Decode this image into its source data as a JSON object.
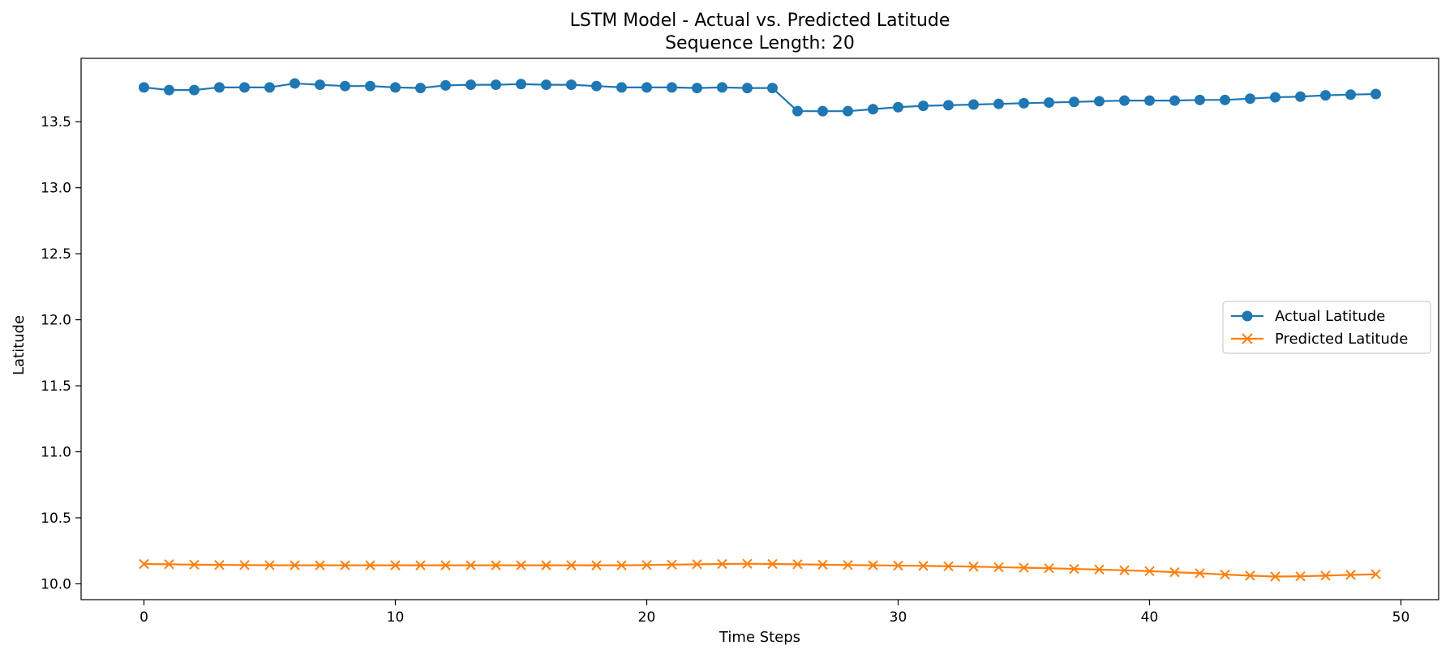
{
  "chart_data": {
    "type": "line",
    "title": "LSTM Model - Actual vs. Predicted Latitude",
    "subtitle": "Sequence Length: 20",
    "xlabel": "Time Steps",
    "ylabel": "Latitude",
    "xlim": [
      -2.5,
      51.5
    ],
    "ylim": [
      9.88,
      13.98
    ],
    "xticks": [
      0,
      10,
      20,
      30,
      40,
      50
    ],
    "yticks": [
      10.0,
      10.5,
      11.0,
      11.5,
      12.0,
      12.5,
      13.0,
      13.5
    ],
    "ytick_labels": [
      "10.0",
      "10.5",
      "11.0",
      "11.5",
      "12.0",
      "12.5",
      "13.0",
      "13.5"
    ],
    "grid": false,
    "legend_position": "center-right",
    "x": [
      0,
      1,
      2,
      3,
      4,
      5,
      6,
      7,
      8,
      9,
      10,
      11,
      12,
      13,
      14,
      15,
      16,
      17,
      18,
      19,
      20,
      21,
      22,
      23,
      24,
      25,
      26,
      27,
      28,
      29,
      30,
      31,
      32,
      33,
      34,
      35,
      36,
      37,
      38,
      39,
      40,
      41,
      42,
      43,
      44,
      45,
      46,
      47,
      48,
      49
    ],
    "series": [
      {
        "name": "Actual Latitude",
        "color": "#1f77b4",
        "marker": "circle",
        "values": [
          13.76,
          13.74,
          13.74,
          13.76,
          13.76,
          13.76,
          13.79,
          13.78,
          13.77,
          13.77,
          13.76,
          13.755,
          13.775,
          13.78,
          13.78,
          13.785,
          13.78,
          13.78,
          13.77,
          13.76,
          13.76,
          13.76,
          13.755,
          13.76,
          13.755,
          13.755,
          13.58,
          13.58,
          13.58,
          13.595,
          13.61,
          13.62,
          13.625,
          13.63,
          13.635,
          13.64,
          13.645,
          13.65,
          13.655,
          13.66,
          13.66,
          13.66,
          13.665,
          13.665,
          13.675,
          13.685,
          13.69,
          13.7,
          13.705,
          13.71
        ]
      },
      {
        "name": "Predicted Latitude",
        "color": "#ff7f0e",
        "marker": "x",
        "values": [
          10.15,
          10.148,
          10.145,
          10.143,
          10.142,
          10.141,
          10.14,
          10.14,
          10.14,
          10.14,
          10.14,
          10.14,
          10.14,
          10.14,
          10.14,
          10.14,
          10.14,
          10.14,
          10.14,
          10.14,
          10.142,
          10.145,
          10.148,
          10.15,
          10.152,
          10.15,
          10.148,
          10.145,
          10.142,
          10.14,
          10.138,
          10.136,
          10.133,
          10.13,
          10.126,
          10.122,
          10.118,
          10.113,
          10.108,
          10.102,
          10.096,
          10.088,
          10.08,
          10.07,
          10.062,
          10.055,
          10.057,
          10.062,
          10.068,
          10.072
        ]
      }
    ]
  }
}
